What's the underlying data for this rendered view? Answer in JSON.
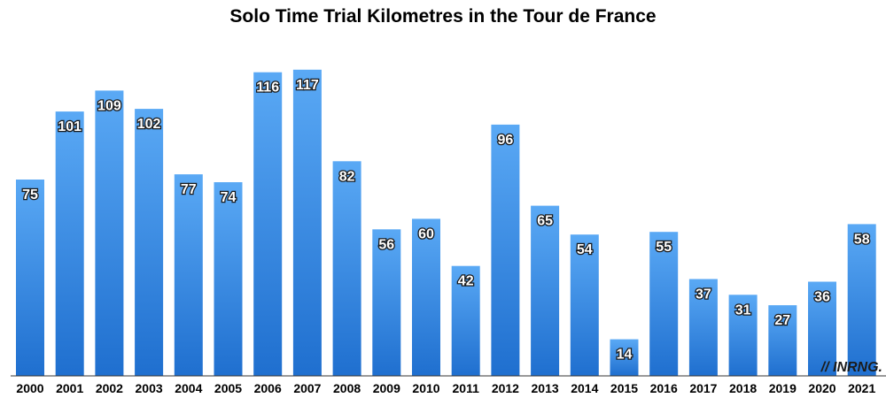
{
  "chart_data": {
    "type": "bar",
    "title": "Solo Time Trial Kilometres in the Tour de France",
    "xlabel": "",
    "ylabel": "",
    "categories": [
      "2000",
      "2001",
      "2002",
      "2003",
      "2004",
      "2005",
      "2006",
      "2007",
      "2008",
      "2009",
      "2010",
      "2011",
      "2012",
      "2013",
      "2014",
      "2015",
      "2016",
      "2017",
      "2018",
      "2019",
      "2020",
      "2021"
    ],
    "values": [
      75,
      101,
      109,
      102,
      77,
      74,
      116,
      117,
      82,
      56,
      60,
      42,
      96,
      65,
      54,
      14,
      55,
      37,
      31,
      27,
      36,
      58
    ],
    "ylim": [
      0,
      123
    ],
    "grid": false,
    "legend": "none",
    "bar_color_top": "#5aa9f5",
    "bar_color_bottom": "#1f6fcf"
  },
  "watermark": {
    "text": "// INRNG."
  }
}
